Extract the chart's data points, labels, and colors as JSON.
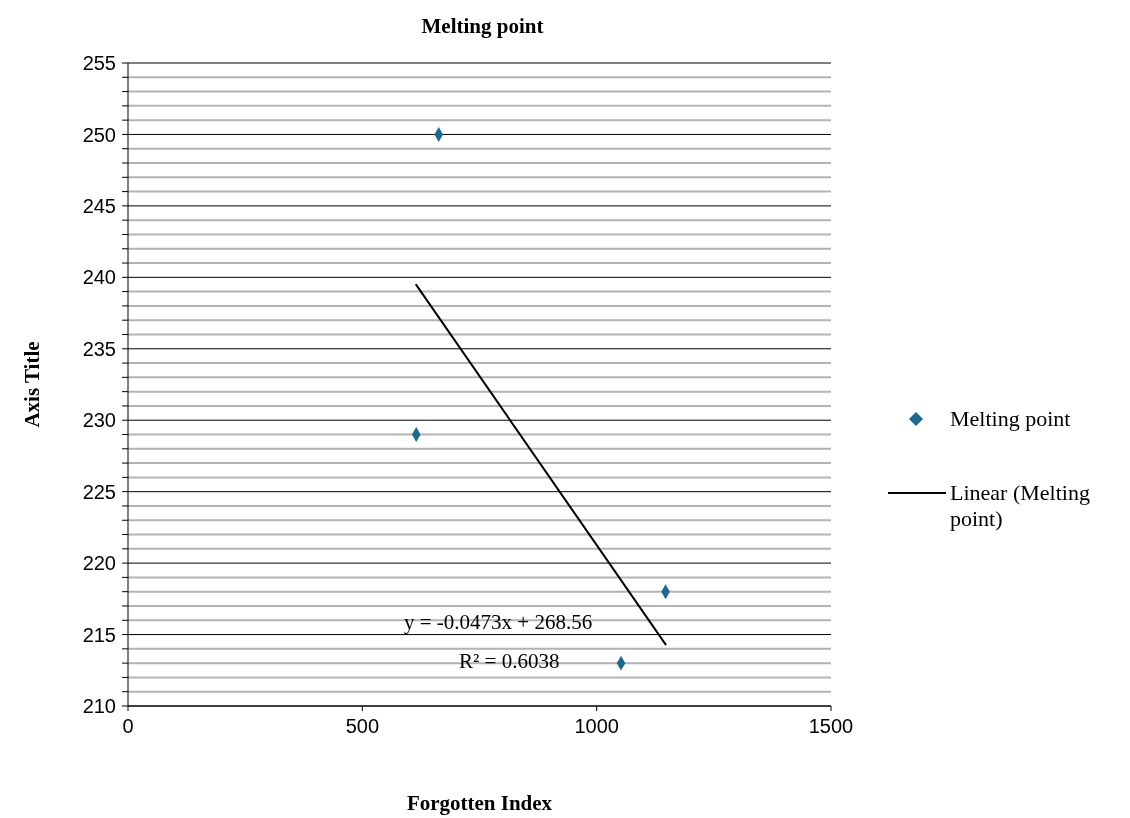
{
  "chart_data": {
    "type": "scatter",
    "title": "Melting point",
    "xlabel": "Forgotten Index",
    "ylabel": "Axis Title",
    "xlim": [
      0,
      1500
    ],
    "xticks": [
      0,
      500,
      1000,
      1500
    ],
    "ylim": [
      210,
      255
    ],
    "yticks": [
      210,
      {
        "value": 211,
        "label": null
      },
      {
        "value": 212,
        "label": null
      },
      {
        "value": 213,
        "label": null
      },
      {
        "value": 214,
        "label": null
      },
      215,
      {
        "value": 216,
        "label": null
      },
      {
        "value": 217,
        "label": null
      },
      {
        "value": 218,
        "label": null
      },
      {
        "value": 219,
        "label": null
      },
      220,
      {
        "value": 221,
        "label": null
      },
      {
        "value": 222,
        "label": null
      },
      {
        "value": 223,
        "label": null
      },
      {
        "value": 224,
        "label": null
      },
      225,
      {
        "value": 226,
        "label": null
      },
      {
        "value": 227,
        "label": null
      },
      {
        "value": 228,
        "label": null
      },
      {
        "value": 229,
        "label": null
      },
      230,
      {
        "value": 231,
        "label": null
      },
      {
        "value": 232,
        "label": null
      },
      {
        "value": 233,
        "label": null
      },
      {
        "value": 234,
        "label": null
      },
      235,
      {
        "value": 236,
        "label": null
      },
      {
        "value": 237,
        "label": null
      },
      {
        "value": 238,
        "label": null
      },
      {
        "value": 239,
        "label": null
      },
      240,
      {
        "value": 241,
        "label": null
      },
      {
        "value": 242,
        "label": null
      },
      {
        "value": 243,
        "label": null
      },
      {
        "value": 244,
        "label": null
      },
      245,
      {
        "value": 246,
        "label": null
      },
      {
        "value": 247,
        "label": null
      },
      {
        "value": 248,
        "label": null
      },
      {
        "value": 249,
        "label": null
      },
      250,
      {
        "value": 251,
        "label": null
      },
      {
        "value": 252,
        "label": null
      },
      {
        "value": 253,
        "label": null
      },
      {
        "value": 254,
        "label": null
      },
      255
    ],
    "grid": "y",
    "legend": "right",
    "series": [
      {
        "name": "Melting point",
        "color": "#1f6a8c",
        "marker": "diamond",
        "x": [
          663,
          615,
          1147,
          1052
        ],
        "values": [
          250,
          229,
          218,
          213
        ]
      },
      {
        "name": "Linear (Melting point)",
        "type": "line",
        "color": "#000000",
        "marker": "none",
        "line_style": "solid",
        "x": [
          615,
          1147
        ],
        "values": [
          239.47,
          214.31
        ]
      }
    ],
    "annotations": [
      "y = -0.0473x + 268.56",
      "R² = 0.6038"
    ]
  }
}
